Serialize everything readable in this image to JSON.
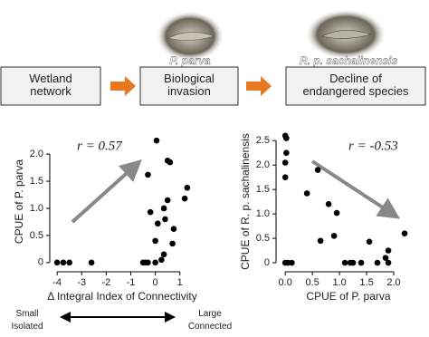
{
  "flow": {
    "boxes": [
      "Wetland\nnetwork",
      "Biological\ninvasion",
      "Decline of\nendangered species"
    ],
    "species": [
      "P. parva",
      "R. p. sachalinensis"
    ]
  },
  "scale": {
    "left": "Small\nIsolated",
    "right": "Large\nConnected"
  },
  "chart_data": [
    {
      "type": "scatter",
      "annotation": "r = 0.57",
      "xlabel": "Δ Integral Index of Connectivity",
      "ylabel": "CPUE of P. parva",
      "color": "#000000",
      "x": [
        -4,
        -3.75,
        -3.5,
        -2.6,
        -0.5,
        -0.4,
        -0.3,
        0,
        0.25,
        0.35,
        -0.3,
        -0.2,
        0,
        0.05,
        0.1,
        0.35,
        0.4,
        0.5,
        0.5,
        0.6,
        0.7,
        0.75,
        1.2,
        1.3
      ],
      "values": [
        0,
        0,
        0,
        0,
        0,
        0,
        0,
        0,
        0.05,
        0.15,
        1.62,
        0.93,
        0.4,
        2.25,
        0.72,
        1.0,
        0.8,
        1.15,
        1.88,
        1.85,
        0.35,
        0.62,
        1.18,
        1.38
      ],
      "xlim": [
        -4.3,
        1.6
      ],
      "ylim": [
        -0.17,
        2.42
      ],
      "xticks": [
        -4,
        -3,
        -2,
        -1,
        0,
        1
      ],
      "yticks": [
        0,
        0.5,
        {
          "value": 1,
          "label": "1.0"
        },
        {
          "value": 1.5,
          "label": "1.5"
        },
        {
          "value": 2,
          "label": "2.0"
        }
      ]
    },
    {
      "type": "scatter",
      "annotation": "r = -0.53",
      "xlabel": "CPUE of P. parva",
      "ylabel": "CPUE of R. p. sachalinensis",
      "color": "#000000",
      "x": [
        0,
        0.02,
        0.02,
        0,
        0,
        0,
        0.05,
        0.12,
        0.4,
        0.6,
        0.65,
        0.8,
        0.9,
        0.95,
        1.1,
        1.2,
        1.25,
        1.4,
        1.55,
        1.7,
        1.85,
        1.9,
        1.9,
        2.2
      ],
      "values": [
        2.6,
        2.55,
        2.25,
        2.05,
        1.75,
        0,
        0,
        0,
        1.42,
        1.9,
        0.45,
        1.2,
        0.55,
        1.02,
        0,
        0,
        0,
        0,
        0.43,
        0,
        0.1,
        0,
        0.25,
        0.6
      ],
      "xlim": [
        -0.17,
        2.5
      ],
      "ylim": [
        -0.185,
        2.69
      ],
      "xticks": [
        {
          "value": 0,
          "label": "0.0"
        },
        0.5,
        {
          "value": 1,
          "label": "1.0"
        },
        {
          "value": 1.5,
          "label": "1.5"
        },
        {
          "value": 2,
          "label": "2.0"
        }
      ],
      "yticks": [
        0,
        0.5,
        {
          "value": 1,
          "label": "1.0"
        },
        {
          "value": 1.5,
          "label": "1.5"
        },
        {
          "value": 2,
          "label": "2.0"
        },
        {
          "value": 2.5,
          "label": "2.5"
        }
      ]
    }
  ]
}
